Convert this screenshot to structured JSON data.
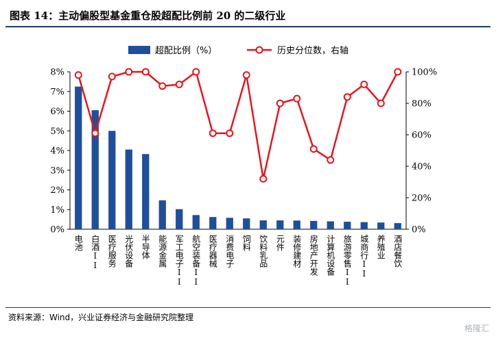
{
  "header": {
    "title": "图表 14：主动偏股型基金重仓股超配比例前 20 的二级行业"
  },
  "footer": {
    "source": "资料来源：Wind，兴业证券经济与金融研究院整理",
    "watermark": "格隆汇"
  },
  "chart_data": {
    "type": "bar",
    "categories": [
      "电池",
      "白酒II",
      "医疗服务",
      "光伏设备",
      "半导体",
      "能源金属",
      "军工电子II",
      "航空装备II",
      "医疗器械",
      "消费电子",
      "饲料",
      "饮料乳品",
      "元件",
      "装修建材",
      "房地产开发",
      "计算机设备",
      "旅游零售II",
      "城商行II",
      "养殖业",
      "酒店餐饮"
    ],
    "series": [
      {
        "name": "超配比例（%）",
        "type": "bar",
        "axis": "left",
        "color": "#1f4e9c",
        "values": [
          7.25,
          6.05,
          5.0,
          4.05,
          3.82,
          1.47,
          1.02,
          0.72,
          0.62,
          0.58,
          0.55,
          0.45,
          0.45,
          0.44,
          0.42,
          0.4,
          0.38,
          0.36,
          0.34,
          0.31
        ]
      },
      {
        "name": "历史分位数，右轴",
        "type": "line",
        "axis": "right",
        "color": "#e8141c",
        "values": [
          98,
          61,
          97,
          100,
          100,
          91,
          92,
          100,
          61,
          61,
          98,
          32,
          80,
          83,
          51,
          44,
          84,
          92,
          80,
          100
        ]
      }
    ],
    "y_left": {
      "ylim": [
        0,
        8
      ],
      "ticks": [
        "0%",
        "1%",
        "2%",
        "3%",
        "4%",
        "5%",
        "6%",
        "7%",
        "8%"
      ]
    },
    "y_right": {
      "ylim": [
        0,
        100
      ],
      "ticks": [
        "0%",
        "20%",
        "40%",
        "60%",
        "80%",
        "100%"
      ]
    },
    "grid": false,
    "legend_position": "top"
  }
}
